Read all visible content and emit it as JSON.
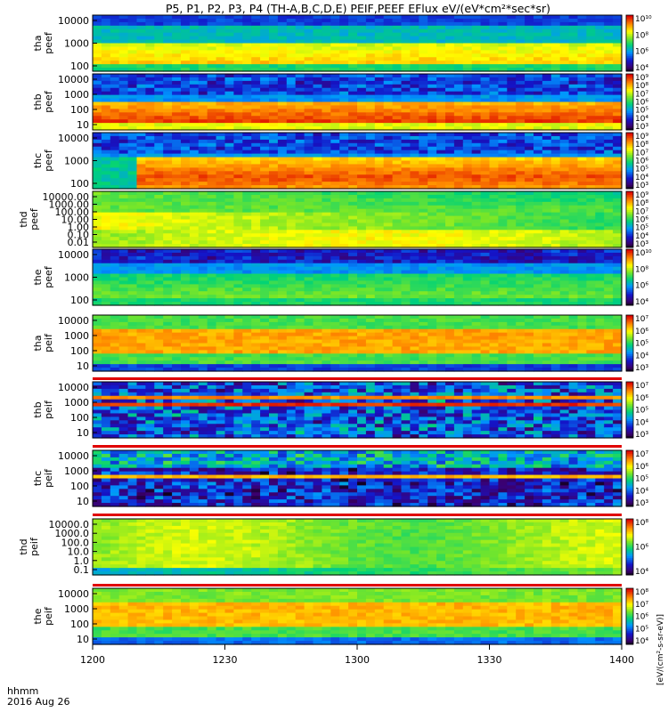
{
  "title": "P5, P1, P2, P3, P4 (TH-A,B,C,D,E) PEIF,PEEF EFlux eV/(eV*cm²*sec*sr)",
  "xaxis": {
    "ticks": [
      "1200",
      "1230",
      "1300",
      "1330",
      "1400"
    ],
    "label_line1": "hhmm",
    "label_line2": "2016 Aug 26"
  },
  "colorbar_unit": "[eV/(cm²-s-sr-eV)]",
  "chart_data": {
    "type": "heatmap",
    "x_range": [
      "12:00",
      "14:00"
    ],
    "panels": [
      {
        "label_top": "tha",
        "label_bot": "peef",
        "yticks": [
          "10000",
          "1000",
          "100"
        ],
        "cb_ticks": [
          "10¹⁰",
          "10⁸",
          "10⁶",
          "10⁴"
        ],
        "cb_min": 4,
        "cb_max": 10,
        "pattern": "e_smooth"
      },
      {
        "label_top": "thb",
        "label_bot": "peef",
        "yticks": [
          "10000",
          "1000",
          "100",
          "10"
        ],
        "cb_ticks": [
          "10⁹",
          "10⁸",
          "10⁷",
          "10⁶",
          "10⁵",
          "10⁴",
          "10³"
        ],
        "cb_min": 3,
        "cb_max": 9,
        "pattern": "e_band"
      },
      {
        "label_top": "thc",
        "label_bot": "peef",
        "yticks": [
          "10000",
          "1000",
          "100"
        ],
        "cb_ticks": [
          "10⁹",
          "10⁸",
          "10⁷",
          "10⁶",
          "10⁵",
          "10⁴",
          "10³"
        ],
        "cb_min": 3,
        "cb_max": 9,
        "pattern": "e_band2"
      },
      {
        "label_top": "thd",
        "label_bot": "peef",
        "yticks": [
          "10000.00",
          "1000.00",
          "100.00",
          "10.00",
          "1.00",
          "0.10",
          "0.01"
        ],
        "cb_ticks": [
          "10⁹",
          "10⁸",
          "10⁷",
          "10⁶",
          "10⁵",
          "10⁴",
          "10³"
        ],
        "cb_min": 3,
        "cb_max": 9,
        "pattern": "thd_e"
      },
      {
        "label_top": "the",
        "label_bot": "peef",
        "yticks": [
          "10000",
          "1000",
          "100"
        ],
        "cb_ticks": [
          "10¹⁰",
          "10⁸",
          "10⁶",
          "10⁴"
        ],
        "cb_min": 4,
        "cb_max": 10,
        "pattern": "the_e"
      },
      {
        "label_top": "tha",
        "label_bot": "peif",
        "yticks": [
          "10000",
          "1000",
          "100",
          "10"
        ],
        "cb_ticks": [
          "10⁷",
          "10⁶",
          "10⁵",
          "10⁴",
          "10³"
        ],
        "cb_min": 3,
        "cb_max": 7,
        "pattern": "i_broad"
      },
      {
        "label_top": "thb",
        "label_bot": "peif",
        "yticks": [
          "10000",
          "1000",
          "100",
          "10"
        ],
        "cb_ticks": [
          "10⁷",
          "10⁶",
          "10⁵",
          "10⁴",
          "10³"
        ],
        "cb_min": 3,
        "cb_max": 7,
        "pattern": "i_noisy"
      },
      {
        "label_top": "thc",
        "label_bot": "peif",
        "yticks": [
          "10000",
          "1000",
          "100",
          "10"
        ],
        "cb_ticks": [
          "10⁷",
          "10⁶",
          "10⁵",
          "10⁴",
          "10³"
        ],
        "cb_min": 3,
        "cb_max": 7,
        "pattern": "i_noisy2"
      },
      {
        "label_top": "thd",
        "label_bot": "peif",
        "yticks": [
          "10000.0",
          "1000.0",
          "100.0",
          "10.0",
          "1.0",
          "0.1"
        ],
        "cb_ticks": [
          "10⁸",
          "10⁶",
          "10⁴"
        ],
        "cb_min": 3,
        "cb_max": 8,
        "pattern": "thd_i"
      },
      {
        "label_top": "the",
        "label_bot": "peif",
        "yticks": [
          "10000",
          "1000",
          "100",
          "10"
        ],
        "cb_ticks": [
          "10⁸",
          "10⁷",
          "10⁶",
          "10⁵",
          "10⁴"
        ],
        "cb_min": 4,
        "cb_max": 8,
        "pattern": "i_broad2"
      }
    ]
  }
}
